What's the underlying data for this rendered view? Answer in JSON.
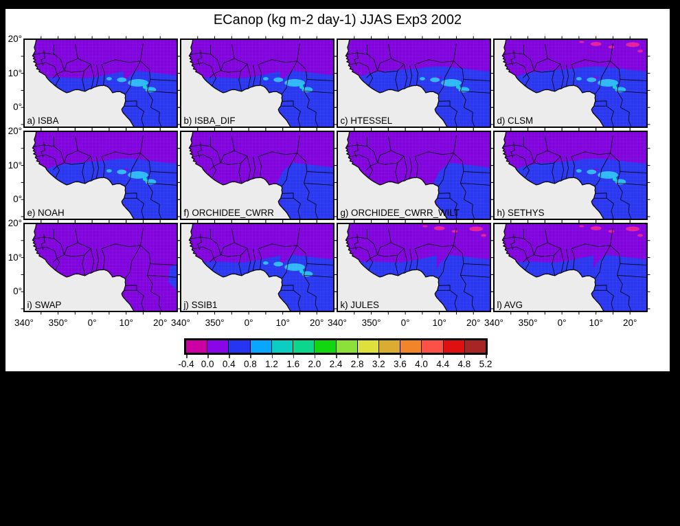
{
  "title": "ECanop (kg m-2 day-1) JJAS Exp3 2002",
  "panels": [
    {
      "id": "a",
      "label": "a) ISBA",
      "blue": "med",
      "cyan": true,
      "pink": false
    },
    {
      "id": "b",
      "label": "b) ISBA_DIF",
      "blue": "med",
      "cyan": true,
      "pink": false
    },
    {
      "id": "c",
      "label": "c) HTESSEL",
      "blue": "high",
      "cyan": true,
      "pink": false
    },
    {
      "id": "d",
      "label": "d) CLSM",
      "blue": "high",
      "cyan": true,
      "pink": true
    },
    {
      "id": "e",
      "label": "e) NOAH",
      "blue": "high",
      "cyan": true,
      "pink": false
    },
    {
      "id": "f",
      "label": "f) ORCHIDEE_CWRR",
      "blue": "low",
      "cyan": false,
      "pink": false
    },
    {
      "id": "g",
      "label": "g) ORCHIDEE_CWRR_WILT",
      "blue": "low",
      "cyan": false,
      "pink": false
    },
    {
      "id": "h",
      "label": "h) SETHYS",
      "blue": "high",
      "cyan": true,
      "pink": false
    },
    {
      "id": "i",
      "label": "i) SWAP",
      "blue": "east",
      "cyan": false,
      "pink": false
    },
    {
      "id": "j",
      "label": "j) SSIB1",
      "blue": "med",
      "cyan": true,
      "pink": false
    },
    {
      "id": "k",
      "label": "k) JULES",
      "blue": "med",
      "cyan": false,
      "pink": true
    },
    {
      "id": "l",
      "label": "l) AVG",
      "blue": "med",
      "cyan": false,
      "pink": true
    }
  ],
  "x_axis": {
    "labels": [
      "340°",
      "350°",
      "0°",
      "10°",
      "20°"
    ]
  },
  "y_axis": {
    "labels": [
      "20°",
      "10°",
      "0°"
    ]
  },
  "colorbar": {
    "colors": [
      "#cc00a2",
      "#8a06e6",
      "#2535f2",
      "#09a5ff",
      "#0bcdc4",
      "#0cd68e",
      "#12d60f",
      "#8ce03a",
      "#e0e03c",
      "#dcab32",
      "#f28429",
      "#fb5146",
      "#e01010",
      "#a82525"
    ],
    "tick_labels": [
      "-0.4",
      "0.0",
      "0.4",
      "0.8",
      "1.2",
      "1.6",
      "2.0",
      "2.4",
      "2.8",
      "3.2",
      "3.6",
      "4.0",
      "4.4",
      "4.8",
      "5.2"
    ]
  },
  "map_colors": {
    "ocean": "#ececec",
    "land": "#8104dd",
    "blue": "#2a38f0",
    "light_blue": "#2fb9f8",
    "cyan": "#14d2cc",
    "negative_pink": "#e6219a",
    "border": "#000000"
  },
  "chart_data": {
    "type": "heatmap",
    "title": "ECanop (kg m-2 day-1) JJAS Exp3 2002",
    "variable": "ECanop",
    "units": "kg m-2 day-1",
    "season": "JJAS",
    "experiment": "Exp3",
    "year": "2002",
    "layout": "4 columns x 3 rows of lon-lat map panels, shared colorbar at bottom",
    "panels": [
      "a) ISBA",
      "b) ISBA_DIF",
      "c) HTESSEL",
      "d) CLSM",
      "e) NOAH",
      "f) ORCHIDEE_CWRR",
      "g) ORCHIDEE_CWRR_WILT",
      "h) SETHYS",
      "i) SWAP",
      "j) SSIB1",
      "k) JULES",
      "l) AVG"
    ],
    "x_tick_labels": [
      "340°",
      "350°",
      "0°",
      "10°",
      "20°"
    ],
    "y_tick_labels": [
      "20°",
      "10°",
      "0°"
    ],
    "lon_range_deg": [
      -20,
      25
    ],
    "lat_range_deg": [
      -5.8,
      20
    ],
    "colorbar_levels": [
      -0.4,
      0.0,
      0.4,
      0.8,
      1.2,
      1.6,
      2.0,
      2.4,
      2.8,
      3.2,
      3.6,
      4.0,
      4.4,
      4.8,
      5.2
    ],
    "colorbar_colors": [
      "#cc00a2",
      "#8a06e6",
      "#2535f2",
      "#09a5ff",
      "#0bcdc4",
      "#0cd68e",
      "#12d60f",
      "#8ce03a",
      "#e0e03c",
      "#dcab32",
      "#f28429",
      "#fb5146",
      "#e01010",
      "#a82525"
    ],
    "legend_position": "bottom",
    "grid": "off",
    "notes": "Values over West Africa are mostly 0.0-0.8 (purple/blue); 0.8-1.6 (light blue/cyan) patches near 5-10N in HTESSEL, CLSM, NOAH, SETHYS; small negative (-0.4-0.0, magenta) spots near 15-20N in CLSM, JULES, AVG; SWAP almost entirely 0.0-0.4"
  }
}
